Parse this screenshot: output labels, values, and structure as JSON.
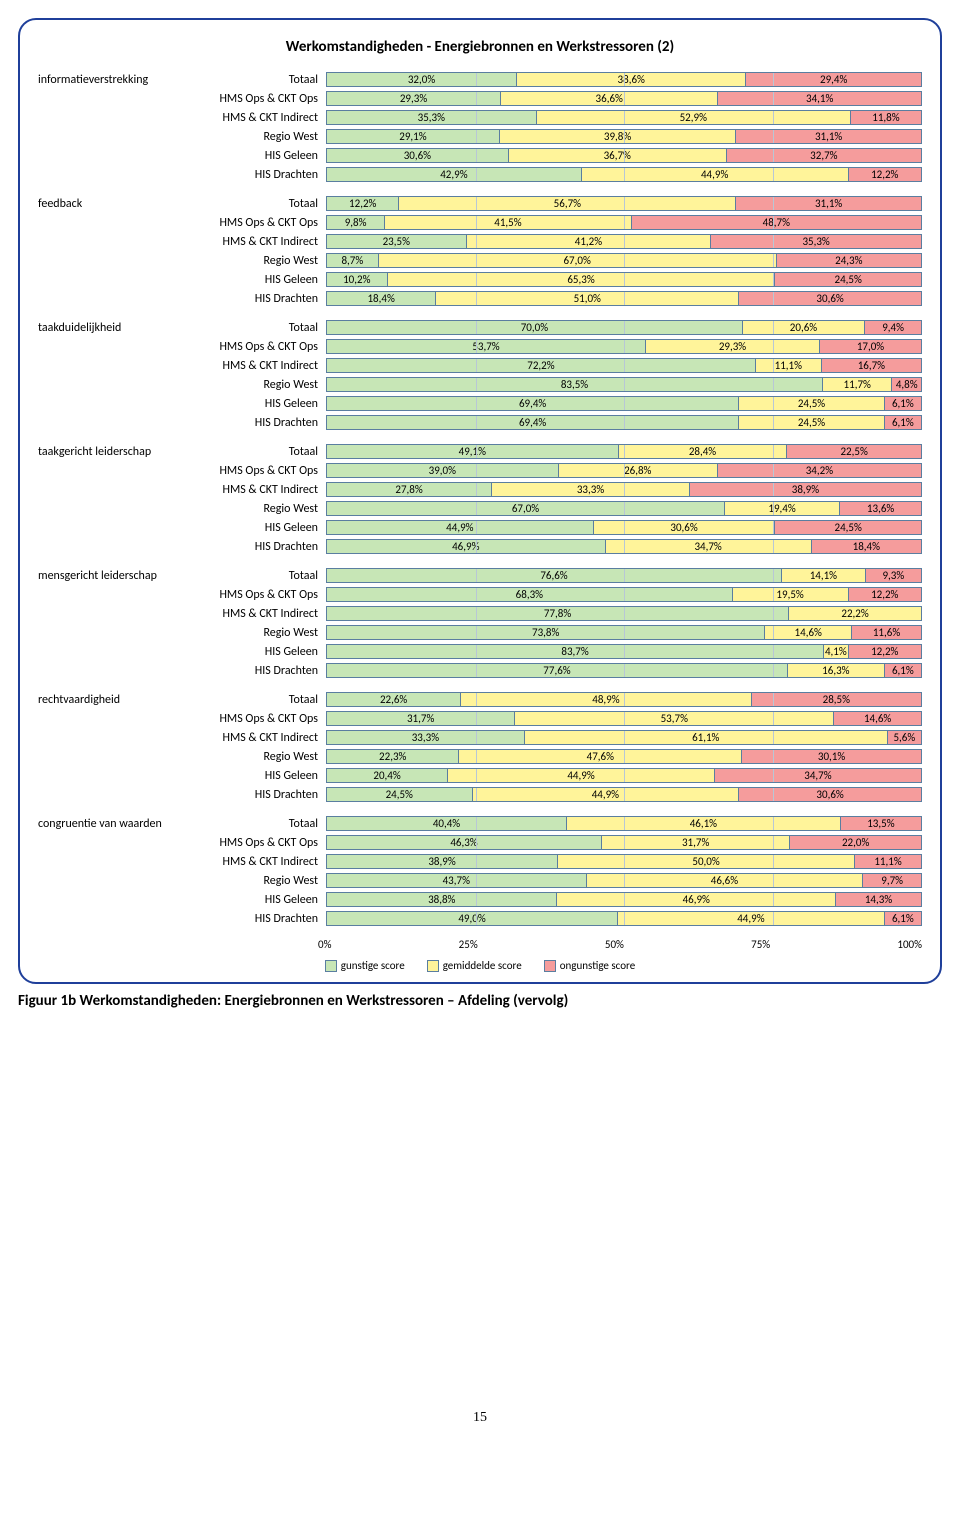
{
  "title": "Werkomstandigheden - Energiebronnen en Werkstressoren (2)",
  "caption": "Figuur 1b Werkomstandigheden: Energiebronnen en Werkstressoren – Afdeling (vervolg)",
  "page_number": "15",
  "colors": {
    "green": "#c7e6b6",
    "yellow": "#fff49a",
    "red": "#f59c9c",
    "red2": "#f18080",
    "border": "#5a7ea0",
    "card_border": "#1f3f9a",
    "grid": "#b8c7d6"
  },
  "legend": [
    {
      "label": "gunstige score",
      "color": "green"
    },
    {
      "label": "gemiddelde score",
      "color": "yellow"
    },
    {
      "label": "ongunstige score",
      "color": "red"
    }
  ],
  "axis_ticks": [
    "0%",
    "25%",
    "50%",
    "75%",
    "100%"
  ],
  "subgroups": [
    "Totaal",
    "HMS Ops & CKT Ops",
    "HMS & CKT Indirect",
    "Regio West",
    "HIS Geleen",
    "HIS Drachten"
  ],
  "categories": [
    {
      "name": "informatieverstrekking",
      "rows": [
        [
          32.0,
          38.6,
          29.4
        ],
        [
          29.3,
          36.6,
          34.1
        ],
        [
          35.3,
          52.9,
          11.8
        ],
        [
          29.1,
          39.8,
          31.1
        ],
        [
          30.6,
          36.7,
          32.7
        ],
        [
          42.9,
          44.9,
          12.2
        ]
      ]
    },
    {
      "name": "feedback",
      "rows": [
        [
          12.2,
          56.7,
          31.1
        ],
        [
          9.8,
          41.5,
          48.7
        ],
        [
          23.5,
          41.2,
          35.3
        ],
        [
          8.7,
          67.0,
          24.3
        ],
        [
          10.2,
          65.3,
          24.5
        ],
        [
          18.4,
          51.0,
          30.6
        ]
      ]
    },
    {
      "name": "taakduidelijkheid",
      "rows": [
        [
          70.0,
          20.6,
          9.4
        ],
        [
          53.7,
          29.3,
          17.0
        ],
        [
          72.2,
          11.1,
          16.7
        ],
        [
          83.5,
          11.7,
          4.8
        ],
        [
          69.4,
          24.5,
          6.1
        ],
        [
          69.4,
          24.5,
          6.1
        ]
      ]
    },
    {
      "name": "taakgericht leiderschap",
      "rows": [
        [
          49.1,
          28.4,
          22.5
        ],
        [
          39.0,
          26.8,
          34.2
        ],
        [
          27.8,
          33.3,
          38.9
        ],
        [
          67.0,
          19.4,
          13.6
        ],
        [
          44.9,
          30.6,
          24.5
        ],
        [
          46.9,
          34.7,
          18.4
        ]
      ]
    },
    {
      "name": "mensgericht leiderschap",
      "rows": [
        [
          76.6,
          14.1,
          9.3
        ],
        [
          68.3,
          19.5,
          12.2
        ],
        [
          77.8,
          22.2,
          0.0
        ],
        [
          73.8,
          14.6,
          11.6
        ],
        [
          83.7,
          4.1,
          12.2
        ],
        [
          77.6,
          16.3,
          6.1
        ]
      ]
    },
    {
      "name": "rechtvaardigheid",
      "rows": [
        [
          22.6,
          48.9,
          28.5
        ],
        [
          31.7,
          53.7,
          14.6
        ],
        [
          33.3,
          61.1,
          5.6
        ],
        [
          22.3,
          47.6,
          30.1
        ],
        [
          20.4,
          44.9,
          34.7
        ],
        [
          24.5,
          44.9,
          30.6
        ]
      ]
    },
    {
      "name": "congruentie van waarden",
      "rows": [
        [
          40.4,
          46.1,
          13.5
        ],
        [
          46.3,
          31.7,
          22.0
        ],
        [
          38.9,
          50.0,
          11.1
        ],
        [
          43.7,
          46.6,
          9.7
        ],
        [
          38.8,
          46.9,
          14.3
        ],
        [
          49.0,
          44.9,
          6.1
        ]
      ]
    }
  ]
}
